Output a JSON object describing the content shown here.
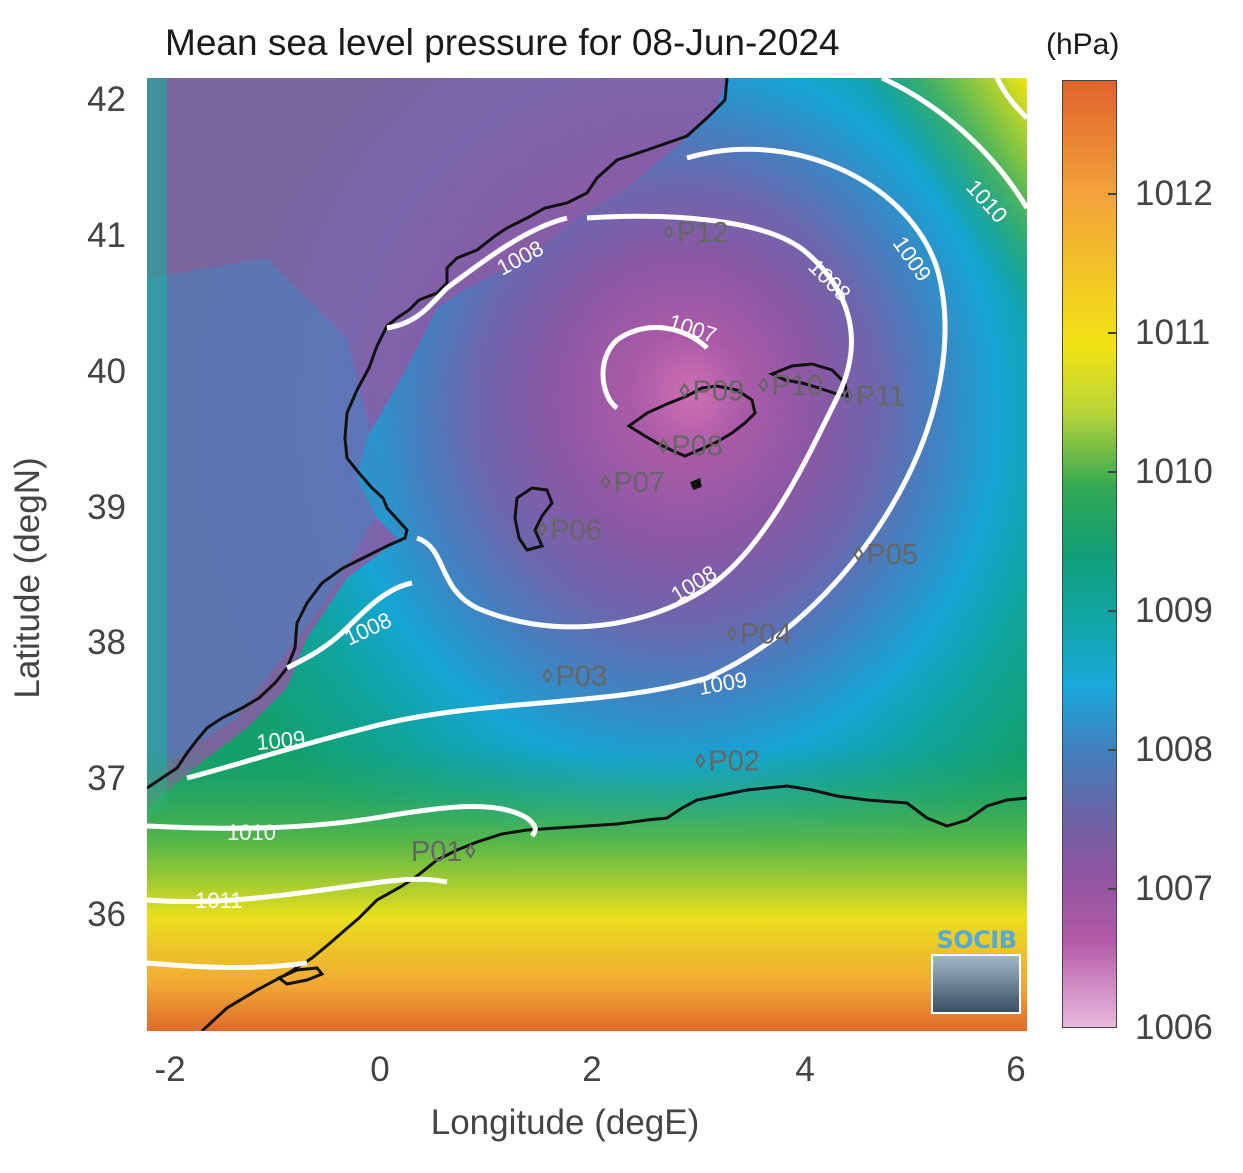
{
  "title": "Mean sea level pressure for 08-Jun-2024",
  "units": "(hPa)",
  "axes": {
    "xlabel": "Longitude (degE)",
    "ylabel": "Latitude (degN)",
    "x_range": [
      -2.25,
      6.1
    ],
    "y_range": [
      35.15,
      42.2
    ],
    "x_ticks": [
      "-2",
      "0",
      "2",
      "4",
      "6"
    ],
    "y_ticks": [
      "42",
      "41",
      "40",
      "39",
      "38",
      "37",
      "36"
    ]
  },
  "colorbar": {
    "min": 1006,
    "max": 1012.8,
    "ticks": [
      "1012",
      "1011",
      "1010",
      "1009",
      "1008",
      "1007",
      "1006"
    ],
    "colors": [
      "#e0622c",
      "#f3a23b",
      "#f2e414",
      "#b9d437",
      "#31a853",
      "#119f76",
      "#10a6a5",
      "#1aa9dc",
      "#417fbc",
      "#6d63a6",
      "#8f55a1",
      "#b45aa7",
      "#e8b9dc"
    ]
  },
  "contour_labels": [
    "1007",
    "1008",
    "1008",
    "1008",
    "1008",
    "1009",
    "1009",
    "1009",
    "1010",
    "1010",
    "1011"
  ],
  "stations": [
    {
      "id": "P01",
      "lon": 0.82,
      "lat": 36.48
    },
    {
      "id": "P02",
      "lon": 3.0,
      "lat": 37.15
    },
    {
      "id": "P03",
      "lon": 1.55,
      "lat": 37.78
    },
    {
      "id": "P04",
      "lon": 3.3,
      "lat": 38.09
    },
    {
      "id": "P05",
      "lon": 4.5,
      "lat": 38.68
    },
    {
      "id": "P06",
      "lon": 1.5,
      "lat": 38.86
    },
    {
      "id": "P07",
      "lon": 2.1,
      "lat": 39.21
    },
    {
      "id": "P08",
      "lon": 2.65,
      "lat": 39.48
    },
    {
      "id": "P09",
      "lon": 2.85,
      "lat": 39.89
    },
    {
      "id": "P10",
      "lon": 3.6,
      "lat": 39.93
    },
    {
      "id": "P11",
      "lon": 4.4,
      "lat": 39.85
    },
    {
      "id": "P12",
      "lon": 2.7,
      "lat": 41.06
    }
  ],
  "logo": {
    "text": "SOCIB"
  },
  "colors": {
    "contour": "#ffffff",
    "coast": "#111111",
    "station": "#666666"
  }
}
